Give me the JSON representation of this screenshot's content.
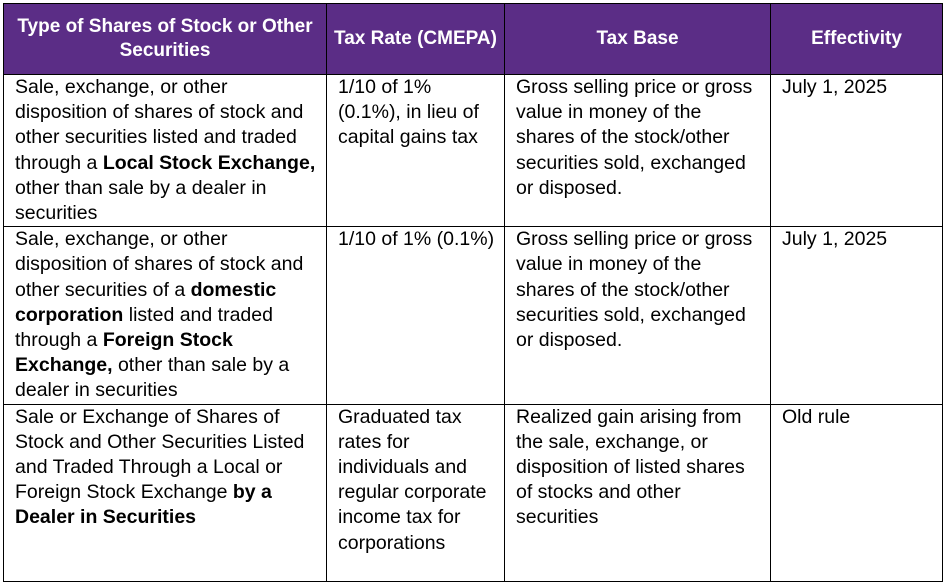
{
  "table": {
    "headers": [
      "Type of Shares of Stock or Other Securities",
      "Tax Rate (CMEPA)",
      "Tax Base",
      "Effectivity"
    ],
    "rows": [
      {
        "type_segments": [
          {
            "text": "Sale, exchange, or other disposition of shares of stock and other securities listed and traded through a ",
            "bold": false
          },
          {
            "text": "Local Stock Exchange,",
            "bold": true
          },
          {
            "text": " other than sale by a dealer in securities",
            "bold": false
          }
        ],
        "tax_rate": "1/10 of 1% (0.1%), in lieu of capital gains tax",
        "tax_base": "Gross selling price or gross value in money of the shares of the stock/other securities sold, exchanged or disposed.",
        "effectivity": "July 1, 2025"
      },
      {
        "type_segments": [
          {
            "text": "Sale, exchange, or other disposition of shares of stock and other securities of a ",
            "bold": false
          },
          {
            "text": "domestic corporation",
            "bold": true
          },
          {
            "text": " listed and traded through a ",
            "bold": false
          },
          {
            "text": "Foreign Stock Exchange,",
            "bold": true
          },
          {
            "text": " other than sale by a dealer in securities",
            "bold": false
          }
        ],
        "tax_rate": "1/10 of 1% (0.1%)",
        "tax_base": "Gross selling price or gross value in money of the shares of the stock/other securities sold, exchanged or disposed.",
        "effectivity": "July 1, 2025"
      },
      {
        "type_segments": [
          {
            "text": "Sale or Exchange of Shares of Stock and Other Securities Listed and Traded Through a Local or Foreign Stock Exchange ",
            "bold": false
          },
          {
            "text": "by a Dealer in Securities",
            "bold": true
          }
        ],
        "tax_rate": "Graduated tax rates for individuals and regular corporate income tax for corporations",
        "tax_base": "Realized gain arising from the sale, exchange, or disposition of listed shares of stocks and other securities",
        "effectivity": "Old rule"
      }
    ]
  },
  "colors": {
    "header_background": "#5b2d86",
    "header_text": "#ffffff",
    "border": "#000000"
  }
}
